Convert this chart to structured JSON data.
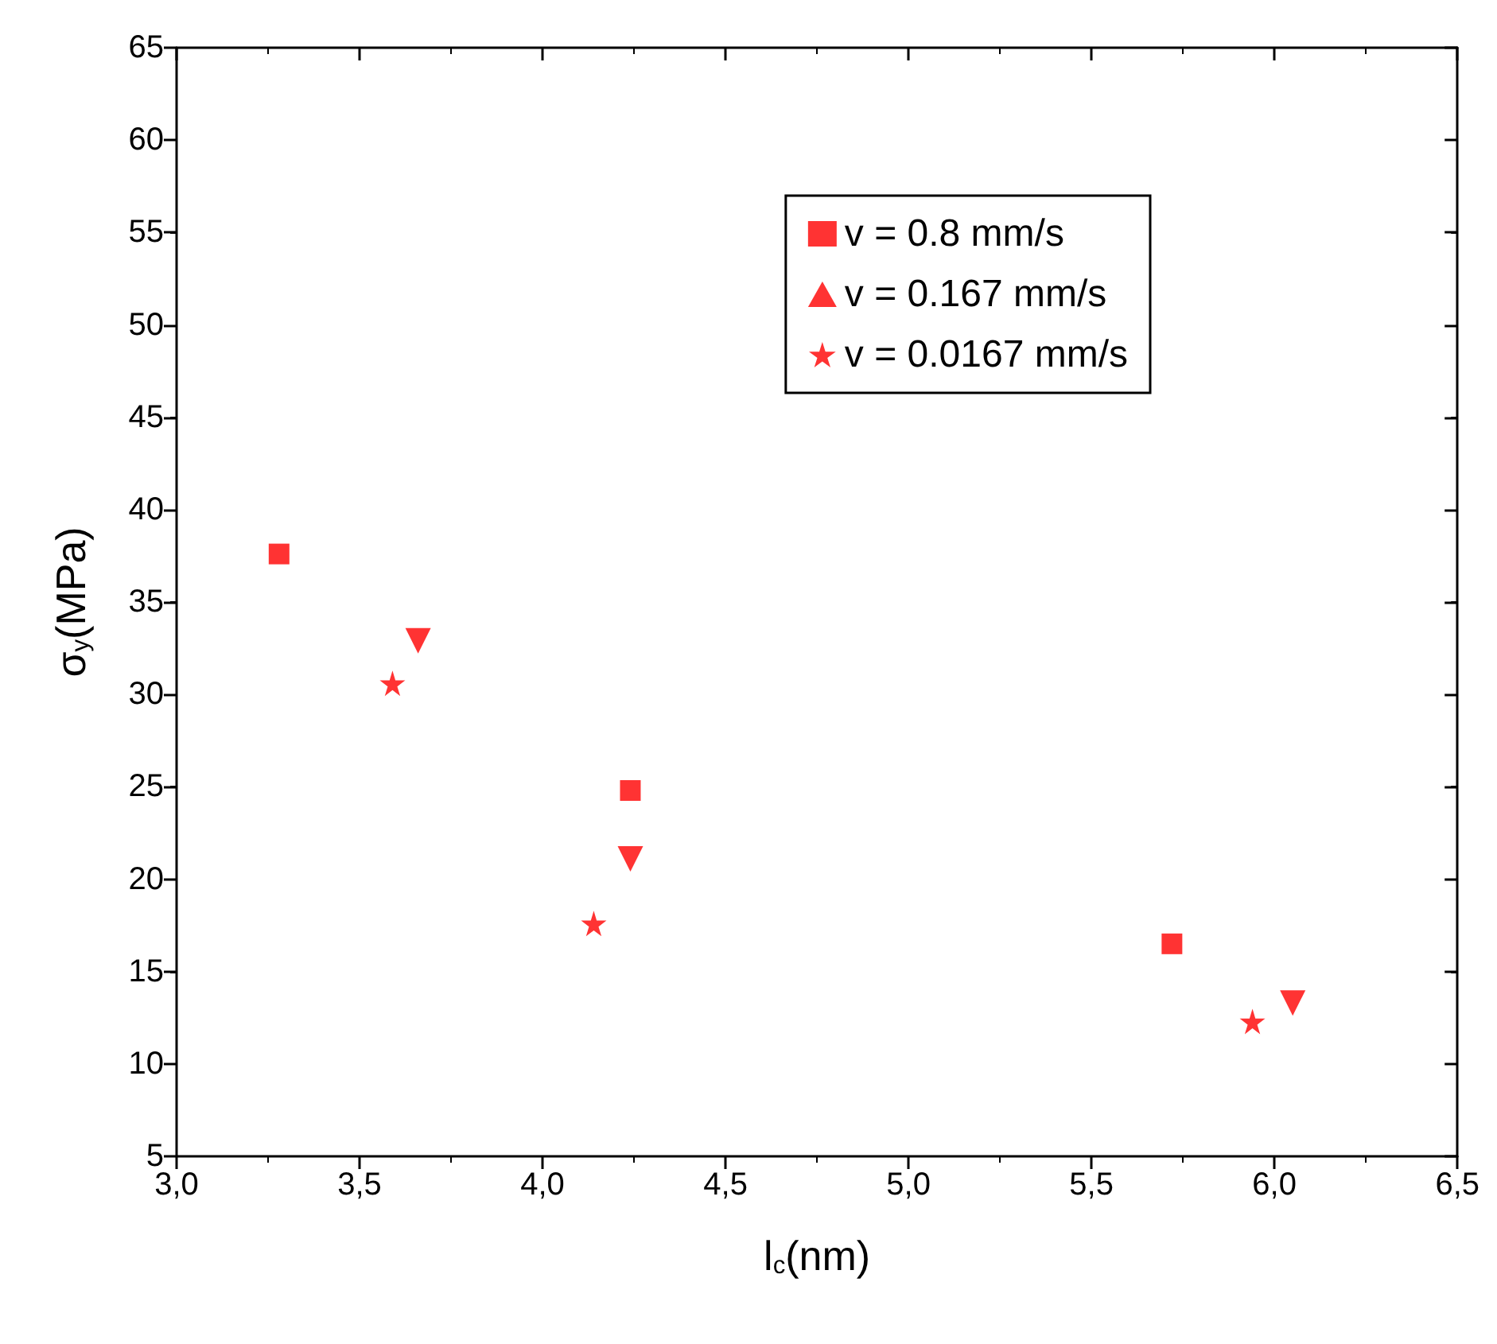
{
  "chart_data": {
    "type": "scatter",
    "xlabel": "l$_{c}$(nm)",
    "ylabel": "σ$_{y}$(MPa)",
    "xlim": [
      3.0,
      6.5
    ],
    "ylim": [
      5,
      65
    ],
    "xticks": [
      {
        "value": 3.0,
        "label": "3,0"
      },
      {
        "value": 3.5,
        "label": "3,5"
      },
      {
        "value": 4.0,
        "label": "4,0"
      },
      {
        "value": 4.5,
        "label": "4,5"
      },
      {
        "value": 5.0,
        "label": "5,0"
      },
      {
        "value": 5.5,
        "label": "5,5"
      },
      {
        "value": 6.0,
        "label": "6,0"
      },
      {
        "value": 6.5,
        "label": "6,5"
      }
    ],
    "yticks": [
      5,
      10,
      15,
      20,
      25,
      30,
      35,
      40,
      45,
      50,
      55,
      60,
      65
    ],
    "grid": false,
    "legend": "top right",
    "series": [
      {
        "name": "v = 0.8 mm/s",
        "color": "#ff0000",
        "marker": "square",
        "x": [
          3.28,
          4.24,
          5.72
        ],
        "values": [
          37.6,
          24.8,
          16.5
        ]
      },
      {
        "name": "v = 0.167 mm/s",
        "color": "#ff0000",
        "marker": "triangle",
        "x": [
          3.66,
          4.24,
          6.05
        ],
        "values": [
          32.9,
          21.1,
          13.3
        ]
      },
      {
        "name": "v = 0.0167 mm/s",
        "color": "#ff0000",
        "marker": "star",
        "x": [
          3.59,
          4.14,
          5.94
        ],
        "values": [
          30.6,
          17.6,
          12.3
        ]
      }
    ]
  }
}
